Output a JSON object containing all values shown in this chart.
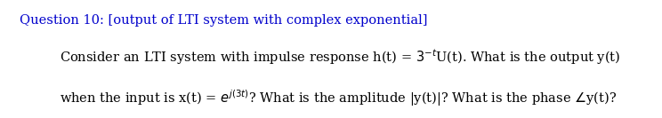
{
  "background_color": "#ffffff",
  "title_line": "Question 10: [output of LTI system with complex exponential]",
  "font_size_title": 10.5,
  "font_size_body": 10.5,
  "text_color": "#000000",
  "title_color": "#0000cc",
  "fig_width": 7.44,
  "fig_height": 1.33,
  "dpi": 100
}
